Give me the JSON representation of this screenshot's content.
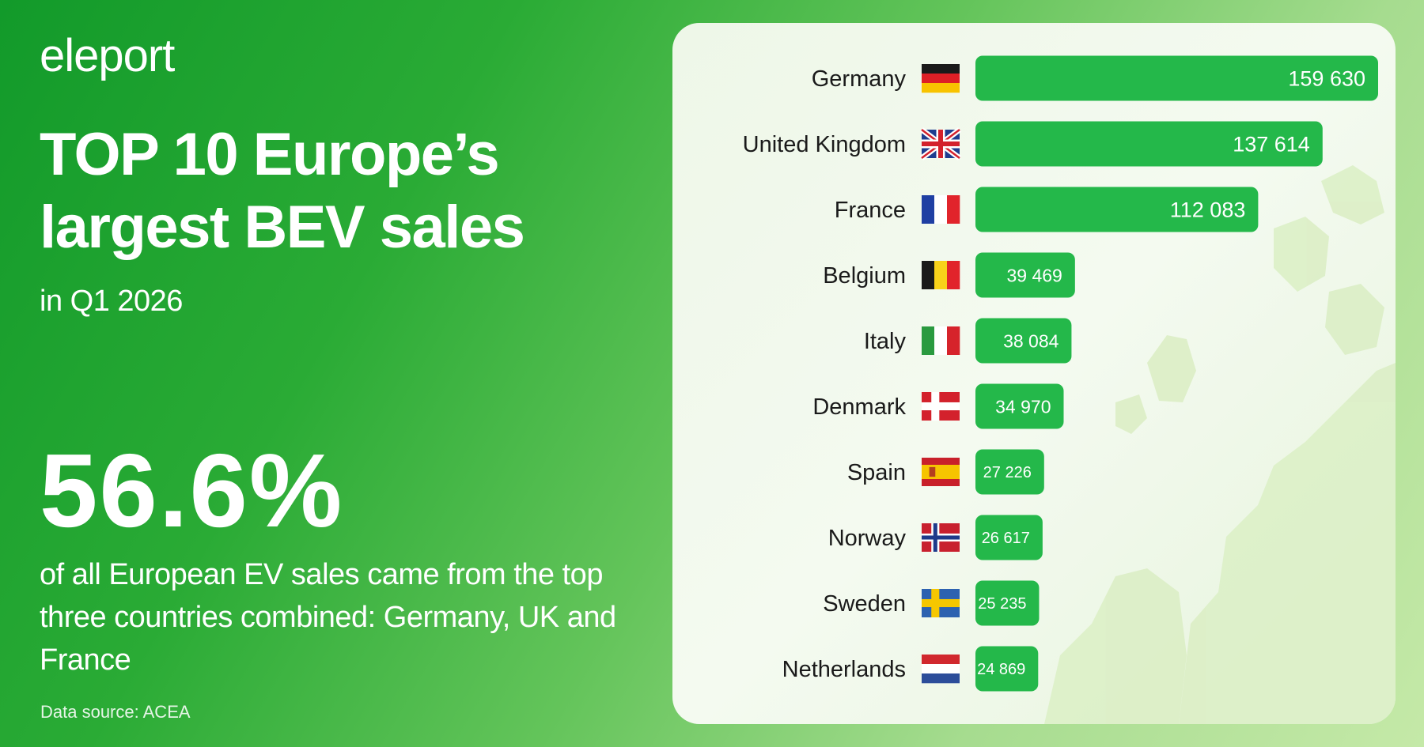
{
  "brand": {
    "logo": "eleport"
  },
  "header": {
    "title": "TOP 10 Europe’s largest BEV sales",
    "subtitle": "in Q1 2026"
  },
  "highlight": {
    "value": "56.6%",
    "description": "of all European EV sales came from the top three countries combined: Germany, UK and France"
  },
  "footer": {
    "source": "Data source: ACEA"
  },
  "colors": {
    "bar": "#24b84a",
    "text": "#1a1a1a",
    "label": "#ffffff"
  },
  "chart_data": {
    "type": "bar",
    "orientation": "horizontal",
    "categories": [
      "Germany",
      "United Kingdom",
      "France",
      "Belgium",
      "Italy",
      "Denmark",
      "Spain",
      "Norway",
      "Sweden",
      "Netherlands"
    ],
    "values": [
      159630,
      137614,
      112083,
      39469,
      38084,
      34970,
      27226,
      26617,
      25235,
      24869
    ],
    "labels": [
      "159 630",
      "137 614",
      "112 083",
      "39 469",
      "38 084",
      "34 970",
      "27 226",
      "26 617",
      "25 235",
      "24 869"
    ],
    "flags": [
      "flag-germany-icon",
      "flag-united-kingdom-icon",
      "flag-france-icon",
      "flag-belgium-icon",
      "flag-italy-icon",
      "flag-denmark-icon",
      "flag-spain-icon",
      "flag-norway-icon",
      "flag-sweden-icon",
      "flag-netherlands-icon"
    ],
    "grid": false,
    "legend": "none"
  }
}
